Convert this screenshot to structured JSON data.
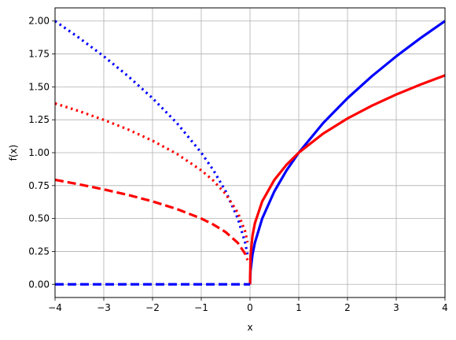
{
  "chart_data": {
    "type": "line",
    "title": "",
    "xlabel": "x",
    "ylabel": "f(x)",
    "xlim": [
      -4,
      4
    ],
    "ylim": [
      -0.1,
      2.1
    ],
    "grid": true,
    "xticks": [
      -4,
      -3,
      -2,
      -1,
      0,
      1,
      2,
      3,
      4
    ],
    "xtick_labels": [
      "−4",
      "−3",
      "−2",
      "−1",
      "0",
      "1",
      "2",
      "3",
      "4"
    ],
    "yticks": [
      0.0,
      0.25,
      0.5,
      0.75,
      1.0,
      1.25,
      1.5,
      1.75,
      2.0
    ],
    "ytick_labels": [
      "0.00",
      "0.25",
      "0.50",
      "0.75",
      "1.00",
      "1.25",
      "1.50",
      "1.75",
      "2.00"
    ],
    "series": [
      {
        "color": "#0000ff",
        "style": "solid",
        "x": [
          0,
          0.01,
          0.05,
          0.1,
          0.25,
          0.5,
          0.75,
          1,
          1.5,
          2,
          2.5,
          3,
          3.5,
          4
        ],
        "y": [
          0,
          0.1,
          0.224,
          0.316,
          0.5,
          0.707,
          0.866,
          1.0,
          1.225,
          1.414,
          1.581,
          1.732,
          1.871,
          2.0
        ]
      },
      {
        "color": "#ff0000",
        "style": "solid",
        "x": [
          0,
          0.01,
          0.05,
          0.1,
          0.25,
          0.5,
          0.75,
          1,
          1.5,
          2,
          2.5,
          3,
          3.5,
          4
        ],
        "y": [
          0,
          0.215,
          0.368,
          0.464,
          0.63,
          0.794,
          0.909,
          1.0,
          1.145,
          1.26,
          1.357,
          1.442,
          1.518,
          1.587
        ]
      },
      {
        "color": "#0000ff",
        "style": "dotted",
        "x": [
          -4,
          -3.5,
          -3,
          -2.5,
          -2,
          -1.5,
          -1,
          -0.75,
          -0.5,
          -0.25,
          -0.1,
          -0.05
        ],
        "y": [
          2.0,
          1.871,
          1.732,
          1.581,
          1.414,
          1.225,
          1.0,
          0.866,
          0.707,
          0.5,
          0.316,
          0.224
        ]
      },
      {
        "color": "#ff0000",
        "style": "dotted",
        "x": [
          -4,
          -3.5,
          -3,
          -2.5,
          -2,
          -1.5,
          -1,
          -0.75,
          -0.5,
          -0.25,
          -0.1,
          -0.05
        ],
        "y": [
          1.374,
          1.315,
          1.249,
          1.176,
          1.091,
          0.991,
          0.866,
          0.787,
          0.687,
          0.545,
          0.402,
          0.319
        ]
      },
      {
        "color": "#ff0000",
        "style": "dashed",
        "x": [
          -4,
          -3.5,
          -3,
          -2.5,
          -2,
          -1.5,
          -1,
          -0.75,
          -0.5,
          -0.25,
          -0.1,
          -0.05
        ],
        "y": [
          0.794,
          0.759,
          0.721,
          0.679,
          0.63,
          0.572,
          0.5,
          0.454,
          0.397,
          0.315,
          0.232,
          0.184
        ]
      },
      {
        "color": "#0000ff",
        "style": "dashed",
        "x": [
          -4,
          0
        ],
        "y": [
          0,
          0
        ]
      }
    ]
  }
}
